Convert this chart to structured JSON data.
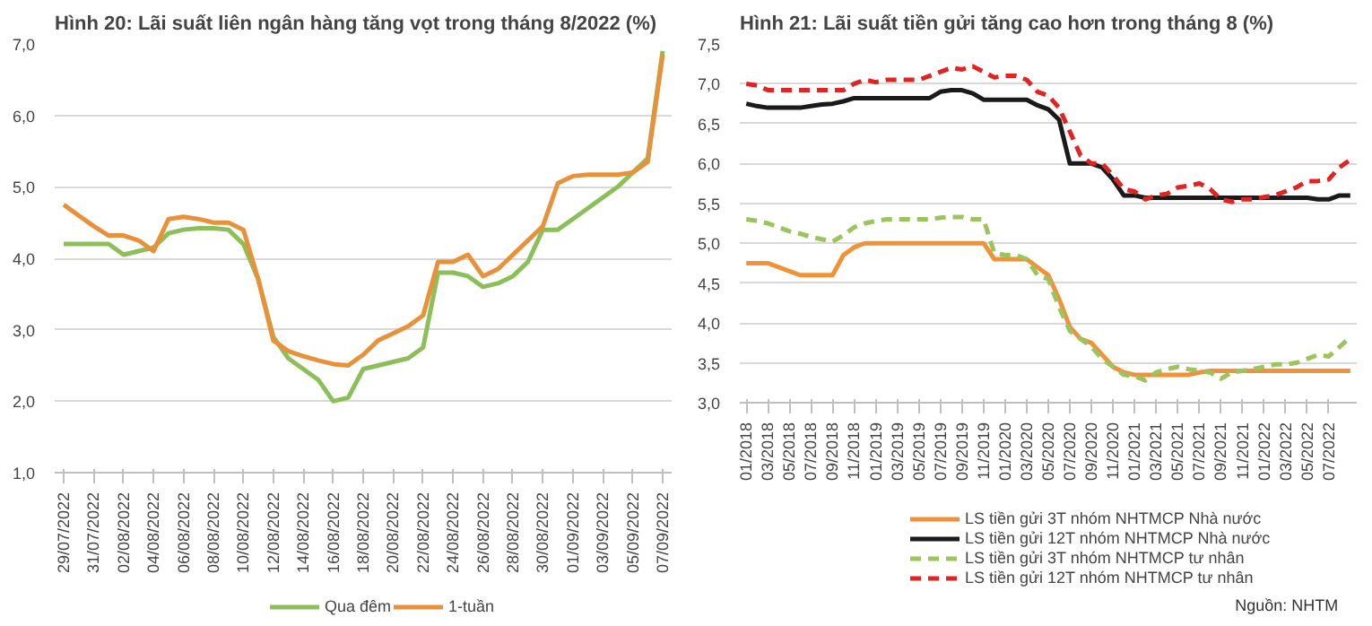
{
  "chart_data": [
    {
      "type": "line",
      "title": "Hình 20: Lãi suất liên ngân hàng tăng vọt trong tháng 8/2022  (%)",
      "categories": [
        "29/07/2022",
        null,
        "31/07/2022",
        null,
        "02/08/2022",
        null,
        "04/08/2022",
        null,
        "06/08/2022",
        null,
        "08/08/2022",
        null,
        "10/08/2022",
        null,
        "12/08/2022",
        null,
        "14/08/2022",
        null,
        "16/08/2022",
        null,
        "18/08/2022",
        null,
        "20/08/2022",
        null,
        "22/08/2022",
        null,
        "24/08/2022",
        null,
        "26/08/2022",
        null,
        "28/08/2022",
        null,
        "30/08/2022",
        null,
        "01/09/2022",
        null,
        "03/09/2022",
        null,
        "05/09/2022",
        null,
        "07/09/2022"
      ],
      "series": [
        {
          "name": "Qua đêm",
          "color": "#8cbf5a",
          "values": [
            4.2,
            4.2,
            4.2,
            4.2,
            4.05,
            4.1,
            4.15,
            4.35,
            4.4,
            4.42,
            4.42,
            4.4,
            4.2,
            3.7,
            2.9,
            2.6,
            2.45,
            2.3,
            2.0,
            2.05,
            2.45,
            2.5,
            2.55,
            2.6,
            2.75,
            3.8,
            3.8,
            3.75,
            3.6,
            3.65,
            3.75,
            3.95,
            4.4,
            4.4,
            4.55,
            4.7,
            4.85,
            5.0,
            5.2,
            5.4,
            6.9
          ]
        },
        {
          "name": "1-tuần",
          "color": "#e8913a",
          "values": [
            4.75,
            4.6,
            4.45,
            4.32,
            4.32,
            4.25,
            4.1,
            4.55,
            4.58,
            4.55,
            4.5,
            4.5,
            4.4,
            3.7,
            2.85,
            2.7,
            2.63,
            2.57,
            2.52,
            2.5,
            2.65,
            2.85,
            2.95,
            3.05,
            3.2,
            3.95,
            3.95,
            4.05,
            3.75,
            3.85,
            4.05,
            4.25,
            4.45,
            5.05,
            5.15,
            5.17,
            5.17,
            5.17,
            5.2,
            5.35,
            6.85
          ]
        }
      ],
      "ylim": [
        1,
        7
      ],
      "yticks": [
        {
          "value": 1,
          "label": "1,0"
        },
        {
          "value": 2,
          "label": "2,0"
        },
        {
          "value": 3,
          "label": "3,0"
        },
        {
          "value": 4,
          "label": "4,0"
        },
        {
          "value": 5,
          "label": "5,0"
        },
        {
          "value": 6,
          "label": "6,0"
        },
        {
          "value": 7,
          "label": "7,0"
        }
      ],
      "grid": "y",
      "legend": "bottom",
      "line_style": "solid"
    },
    {
      "type": "line",
      "title": "Hình 21: Lãi suất tiền gửi tăng cao hơn trong tháng 8 (%)",
      "categories": [
        "01/2018",
        null,
        "03/2018",
        null,
        "05/2018",
        null,
        "07/2018",
        null,
        "09/2018",
        null,
        "11/2018",
        null,
        "01/2019",
        null,
        "03/2019",
        null,
        "05/2019",
        null,
        "07/2019",
        null,
        "09/2019",
        null,
        "11/2019",
        null,
        "01/2020",
        null,
        "03/2020",
        null,
        "05/2020",
        null,
        "07/2020",
        null,
        "09/2020",
        null,
        "11/2020",
        null,
        "01/2021",
        null,
        "03/2021",
        null,
        "05/2021",
        null,
        "07/2021",
        null,
        "09/2021",
        null,
        "11/2021",
        null,
        "01/2022",
        null,
        "03/2022",
        null,
        "05/2022",
        null,
        "07/2022",
        null,
        null
      ],
      "series": [
        {
          "name": "LS tiền gửi 3T nhóm NHTMCP Nhà nước",
          "color": "#f0923a",
          "line_style": "solid",
          "values": [
            4.75,
            4.75,
            4.75,
            4.7,
            4.65,
            4.6,
            4.6,
            4.6,
            4.6,
            4.85,
            4.95,
            5.0,
            5.0,
            5.0,
            5.0,
            5.0,
            5.0,
            5.0,
            5.0,
            5.0,
            5.0,
            5.0,
            5.0,
            4.8,
            4.8,
            4.8,
            4.8,
            4.7,
            4.6,
            4.3,
            3.95,
            3.8,
            3.75,
            3.6,
            3.45,
            3.38,
            3.35,
            3.35,
            3.35,
            3.35,
            3.35,
            3.35,
            3.38,
            3.4,
            3.4,
            3.4,
            3.4,
            3.4,
            3.4,
            3.4,
            3.4,
            3.4,
            3.4,
            3.4,
            3.4,
            3.4,
            3.4
          ]
        },
        {
          "name": "LS tiền gửi 12T nhóm NHTMCP Nhà nước",
          "color": "#1a1a1a",
          "line_style": "solid",
          "values": [
            6.75,
            6.72,
            6.7,
            6.7,
            6.7,
            6.7,
            6.72,
            6.74,
            6.75,
            6.78,
            6.82,
            6.82,
            6.82,
            6.82,
            6.82,
            6.82,
            6.82,
            6.82,
            6.9,
            6.92,
            6.92,
            6.88,
            6.8,
            6.8,
            6.8,
            6.8,
            6.8,
            6.73,
            6.68,
            6.55,
            6.0,
            6.0,
            6.0,
            5.95,
            5.8,
            5.6,
            5.6,
            5.57,
            5.57,
            5.57,
            5.57,
            5.57,
            5.57,
            5.57,
            5.57,
            5.57,
            5.57,
            5.57,
            5.57,
            5.57,
            5.57,
            5.57,
            5.57,
            5.55,
            5.55,
            5.6,
            5.6
          ]
        },
        {
          "name": "LS tiền gửi 3T nhóm NHTMCP tư nhân",
          "color": "#9bc45c",
          "line_style": "dashed",
          "values": [
            5.3,
            5.28,
            5.25,
            5.2,
            5.15,
            5.12,
            5.08,
            5.05,
            5.02,
            5.1,
            5.2,
            5.25,
            5.28,
            5.3,
            5.3,
            5.3,
            5.3,
            5.3,
            5.32,
            5.33,
            5.33,
            5.3,
            5.3,
            4.88,
            4.85,
            4.85,
            4.8,
            4.6,
            4.55,
            4.2,
            3.9,
            3.8,
            3.7,
            3.55,
            3.45,
            3.35,
            3.33,
            3.28,
            3.38,
            3.42,
            3.45,
            3.42,
            3.4,
            3.38,
            3.3,
            3.38,
            3.4,
            3.42,
            3.45,
            3.48,
            3.48,
            3.5,
            3.55,
            3.6,
            3.58,
            3.7,
            3.82
          ]
        },
        {
          "name": "LS tiền gửi 12T nhóm NHTMCP tư nhân",
          "color": "#e02424",
          "line_style": "dashed",
          "values": [
            7.0,
            6.98,
            6.92,
            6.92,
            6.92,
            6.92,
            6.92,
            6.92,
            6.92,
            6.92,
            7.0,
            7.05,
            7.02,
            7.05,
            7.05,
            7.05,
            7.05,
            7.1,
            7.15,
            7.2,
            7.18,
            7.22,
            7.15,
            7.08,
            7.1,
            7.1,
            7.05,
            6.9,
            6.85,
            6.7,
            6.4,
            6.1,
            6.0,
            6.0,
            5.85,
            5.68,
            5.65,
            5.55,
            5.6,
            5.62,
            5.7,
            5.72,
            5.75,
            5.68,
            5.55,
            5.52,
            5.55,
            5.55,
            5.58,
            5.6,
            5.65,
            5.7,
            5.78,
            5.78,
            5.8,
            5.95,
            6.05
          ]
        }
      ],
      "ylim": [
        3,
        7.5
      ],
      "yticks": [
        {
          "value": 3,
          "label": "3,0"
        },
        {
          "value": 3.5,
          "label": "3,5"
        },
        {
          "value": 4,
          "label": "4,0"
        },
        {
          "value": 4.5,
          "label": "4,5"
        },
        {
          "value": 5,
          "label": "5,0"
        },
        {
          "value": 5.5,
          "label": "5,5"
        },
        {
          "value": 6,
          "label": "6,0"
        },
        {
          "value": 6.5,
          "label": "6,5"
        },
        {
          "value": 7,
          "label": "7,0"
        },
        {
          "value": 7.5,
          "label": "7,5"
        }
      ],
      "grid": "y",
      "legend": "bottom",
      "annotations": [
        "Nguồn: NHTM"
      ]
    }
  ]
}
